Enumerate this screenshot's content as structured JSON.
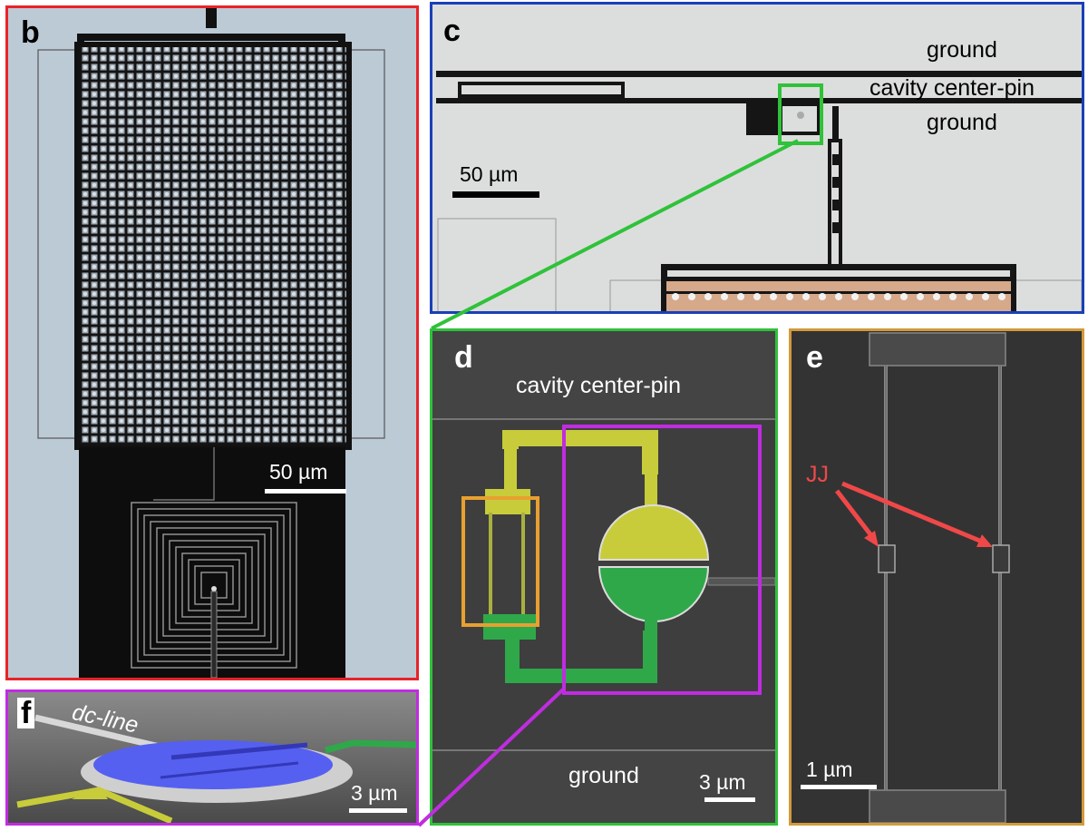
{
  "panels": {
    "b": {
      "letter": "b",
      "scale_bar": "50 µm",
      "frame_color": "#e8232a"
    },
    "c": {
      "letter": "c",
      "labels": {
        "ground_top": "ground",
        "center_pin": "cavity center-pin",
        "ground_bottom": "ground"
      },
      "scale_bar": "50 µm",
      "frame_color": "#1a3fb8"
    },
    "d": {
      "letter": "d",
      "labels": {
        "center_pin": "cavity center-pin",
        "ground": "ground"
      },
      "scale_bar": "3 µm",
      "frame_color": "#2fc23a"
    },
    "e": {
      "letter": "e",
      "labels": {
        "jj": "JJ"
      },
      "scale_bar": "1 µm",
      "frame_color": "#d39a3a",
      "arrow_color": "#f04848"
    },
    "f": {
      "letter": "f",
      "labels": {
        "dc_line": "dc-line"
      },
      "scale_bar": "3 µm",
      "frame_color": "#c02ce0"
    }
  },
  "colors": {
    "red_frame": "#e8232a",
    "blue_frame": "#1a3fb8",
    "green_frame": "#2fc23a",
    "orange_frame": "#d39a3a",
    "magenta_frame": "#c02ce0",
    "sem_background": "#3a3a3a",
    "optical_background": "#c8d4dc",
    "yellow_false_color": "#c8cc3a",
    "green_false_color": "#2fa84a",
    "blue_false_color": "#5560f0"
  }
}
